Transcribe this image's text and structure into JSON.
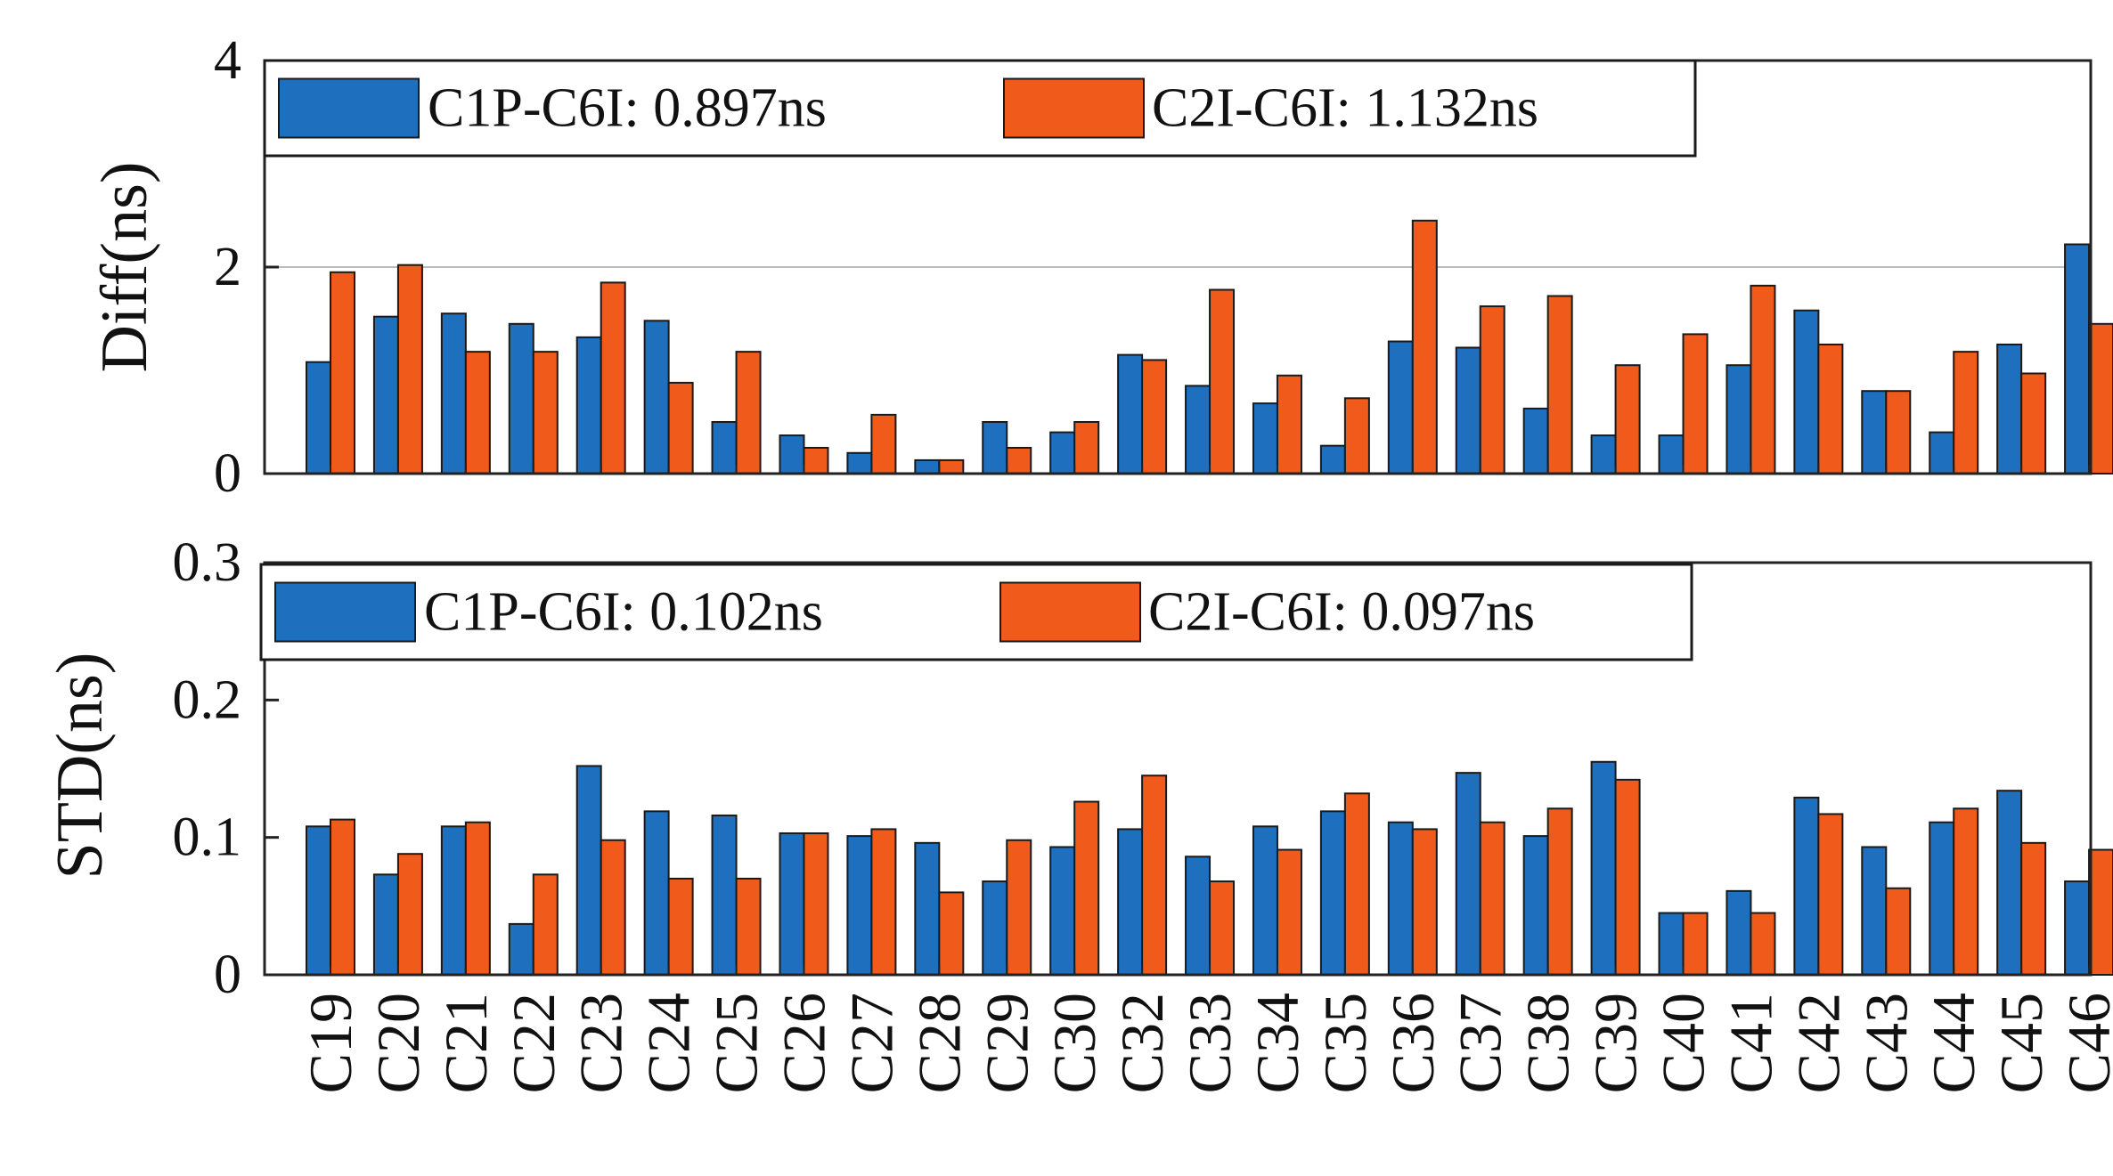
{
  "colors": {
    "series1": "#1f6fbf",
    "series2": "#f05a1a",
    "axis": "#222222",
    "grid": "#bdbdbd"
  },
  "chart_data": [
    {
      "type": "bar",
      "ylabel": "Diff(ns)",
      "ylim": [
        0,
        4
      ],
      "yticks": [
        "0",
        "2",
        "4"
      ],
      "grid": "horizontal at 2",
      "legend_placement": "top",
      "categories": [
        "C19",
        "C20",
        "C21",
        "C22",
        "C23",
        "C24",
        "C25",
        "C26",
        "C27",
        "C28",
        "C29",
        "C30",
        "C32",
        "C33",
        "C34",
        "C35",
        "C36",
        "C37",
        "C38",
        "C39",
        "C40",
        "C41",
        "C42",
        "C43",
        "C44",
        "C45",
        "C46"
      ],
      "series": [
        {
          "name": "C1P-C6I: 0.897ns",
          "values": [
            1.08,
            1.52,
            1.55,
            1.45,
            1.32,
            1.48,
            0.5,
            0.37,
            0.2,
            0.13,
            0.5,
            0.4,
            1.15,
            0.85,
            0.68,
            0.27,
            1.28,
            1.22,
            0.63,
            0.37,
            0.37,
            1.05,
            1.58,
            0.8,
            0.4,
            1.25,
            2.22
          ]
        },
        {
          "name": "C2I-C6I: 1.132ns",
          "values": [
            1.95,
            2.02,
            1.18,
            1.18,
            1.85,
            0.88,
            1.18,
            0.25,
            0.57,
            0.13,
            0.25,
            0.5,
            1.1,
            1.78,
            0.95,
            0.73,
            2.45,
            1.62,
            1.72,
            1.05,
            1.35,
            1.82,
            1.25,
            0.8,
            1.18,
            0.97,
            1.45
          ]
        }
      ]
    },
    {
      "type": "bar",
      "ylabel": "STD(ns)",
      "ylim": [
        0,
        0.3
      ],
      "yticks": [
        "0",
        "0.1",
        "0.2",
        "0.3"
      ],
      "legend_placement": "top",
      "categories": [
        "C19",
        "C20",
        "C21",
        "C22",
        "C23",
        "C24",
        "C25",
        "C26",
        "C27",
        "C28",
        "C29",
        "C30",
        "C32",
        "C33",
        "C34",
        "C35",
        "C36",
        "C37",
        "C38",
        "C39",
        "C40",
        "C41",
        "C42",
        "C43",
        "C44",
        "C45",
        "C46"
      ],
      "series": [
        {
          "name": "C1P-C6I: 0.102ns",
          "values": [
            0.108,
            0.073,
            0.108,
            0.037,
            0.152,
            0.119,
            0.116,
            0.103,
            0.101,
            0.096,
            0.068,
            0.093,
            0.106,
            0.086,
            0.108,
            0.119,
            0.111,
            0.147,
            0.101,
            0.155,
            0.045,
            0.061,
            0.129,
            0.093,
            0.111,
            0.134,
            0.068
          ]
        },
        {
          "name": "C2I-C6I: 0.097ns",
          "values": [
            0.113,
            0.088,
            0.111,
            0.073,
            0.098,
            0.07,
            0.07,
            0.103,
            0.106,
            0.06,
            0.098,
            0.126,
            0.145,
            0.068,
            0.091,
            0.132,
            0.106,
            0.111,
            0.121,
            0.142,
            0.045,
            0.045,
            0.117,
            0.063,
            0.121,
            0.096,
            0.091
          ]
        }
      ]
    }
  ]
}
